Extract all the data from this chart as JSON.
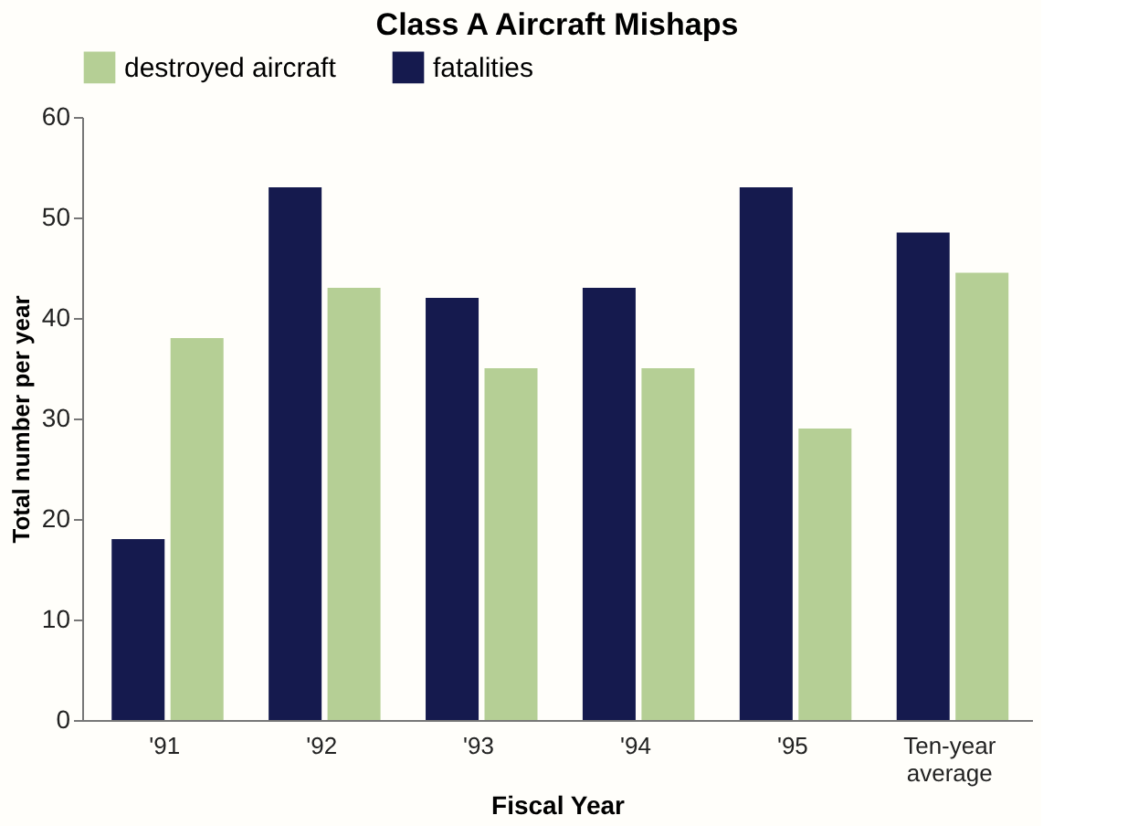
{
  "chart_data": {
    "type": "bar",
    "title": "Class A Aircraft Mishaps",
    "xlabel": "Fiscal Year",
    "ylabel": "Total number per year",
    "categories": [
      "'91",
      "'92",
      "'93",
      "'94",
      "'95",
      "Ten-year average"
    ],
    "series": [
      {
        "name": "fatalities",
        "color": "#151a4e",
        "values": [
          18,
          53,
          42,
          43,
          53,
          48.5
        ]
      },
      {
        "name": "destroyed aircraft",
        "color": "#b5cf95",
        "values": [
          38,
          43,
          35,
          35,
          29,
          44.5
        ]
      }
    ],
    "ylim": [
      0,
      60
    ],
    "yticks": [
      0,
      10,
      20,
      30,
      40,
      50,
      60
    ],
    "grid": false,
    "legend": "top"
  }
}
